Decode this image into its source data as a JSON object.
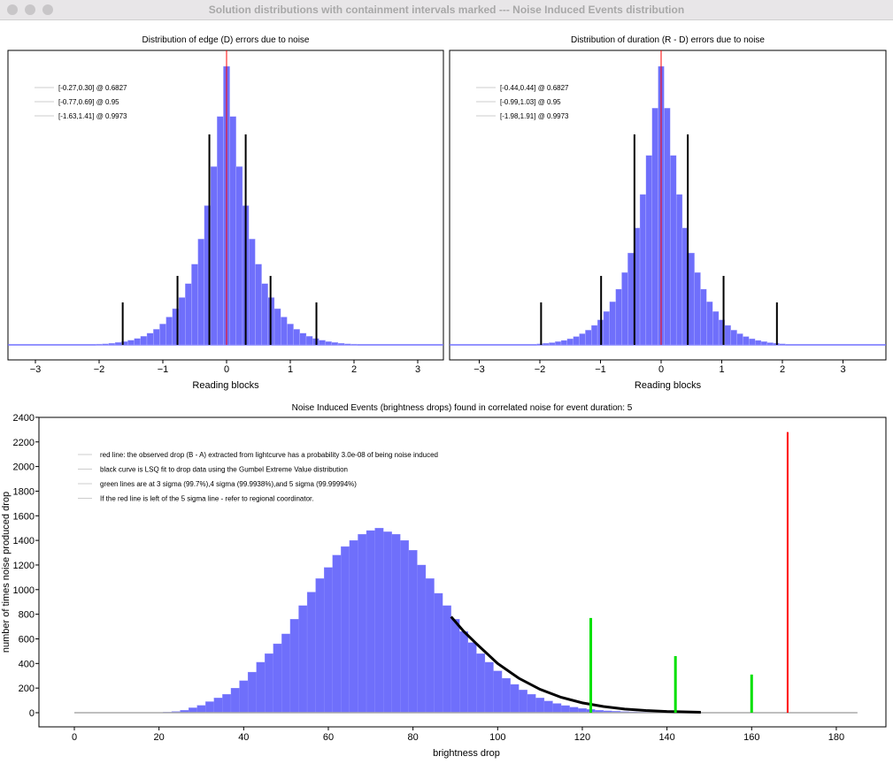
{
  "window": {
    "title": "Solution distributions with containment intervals marked --- Noise Induced Events distribution"
  },
  "chart_data": [
    {
      "type": "bar",
      "title": "Distribution of edge (D) errors due to noise",
      "xlabel": "Reading blocks",
      "ylabel": "",
      "xlim": [
        -3.4,
        3.4
      ],
      "xticks": [
        -3,
        -2,
        -1,
        0,
        1,
        2,
        3
      ],
      "bin_centers": [
        -2.0,
        -1.9,
        -1.8,
        -1.7,
        -1.6,
        -1.5,
        -1.4,
        -1.3,
        -1.2,
        -1.1,
        -1.0,
        -0.9,
        -0.8,
        -0.7,
        -0.6,
        -0.5,
        -0.4,
        -0.3,
        -0.2,
        -0.1,
        0,
        0.1,
        0.2,
        0.3,
        0.4,
        0.5,
        0.6,
        0.7,
        0.8,
        0.9,
        1.0,
        1.1,
        1.2,
        1.3,
        1.4,
        1.5,
        1.6,
        1.7,
        1.8,
        1.9,
        2.0
      ],
      "relative_counts": [
        0.003,
        0.004,
        0.006,
        0.009,
        0.012,
        0.017,
        0.023,
        0.031,
        0.042,
        0.056,
        0.075,
        0.1,
        0.13,
        0.17,
        0.22,
        0.29,
        0.38,
        0.5,
        0.64,
        0.82,
        1.0,
        0.82,
        0.64,
        0.5,
        0.38,
        0.29,
        0.22,
        0.17,
        0.13,
        0.1,
        0.075,
        0.056,
        0.042,
        0.031,
        0.023,
        0.017,
        0.012,
        0.009,
        0.006,
        0.004,
        0.003
      ],
      "red_line_x": 0,
      "intervals": [
        {
          "lo": -0.27,
          "hi": 0.3,
          "label": "[-0.27,0.30] @ 0.6827"
        },
        {
          "lo": -0.77,
          "hi": 0.69,
          "label": "[-0.77,0.69] @ 0.95"
        },
        {
          "lo": -1.63,
          "hi": 1.41,
          "label": "[-1.63,1.41] @ 0.9973"
        }
      ],
      "legend_position": "top-left",
      "bar_color": "#6f6ffb",
      "line_color": "#ff0000"
    },
    {
      "type": "bar",
      "title": "Distribution of duration (R - D) errors due to noise",
      "xlabel": "Reading blocks",
      "ylabel": "",
      "xlim": [
        -3.4,
        3.8
      ],
      "xticks": [
        -3,
        -2,
        -1,
        0,
        1,
        2,
        3
      ],
      "bin_centers": [
        -2.0,
        -1.9,
        -1.8,
        -1.7,
        -1.6,
        -1.5,
        -1.4,
        -1.3,
        -1.2,
        -1.1,
        -1.0,
        -0.9,
        -0.8,
        -0.7,
        -0.6,
        -0.5,
        -0.4,
        -0.3,
        -0.2,
        -0.1,
        0,
        0.1,
        0.2,
        0.3,
        0.4,
        0.5,
        0.6,
        0.7,
        0.8,
        0.9,
        1.0,
        1.1,
        1.2,
        1.3,
        1.4,
        1.5,
        1.6,
        1.7,
        1.8,
        1.9,
        2.0
      ],
      "relative_counts": [
        0.004,
        0.006,
        0.008,
        0.012,
        0.016,
        0.022,
        0.03,
        0.04,
        0.053,
        0.07,
        0.09,
        0.12,
        0.155,
        0.2,
        0.26,
        0.33,
        0.42,
        0.54,
        0.68,
        0.85,
        1.0,
        0.85,
        0.68,
        0.54,
        0.42,
        0.33,
        0.26,
        0.2,
        0.155,
        0.12,
        0.09,
        0.07,
        0.053,
        0.04,
        0.03,
        0.022,
        0.016,
        0.012,
        0.008,
        0.006,
        0.004
      ],
      "red_line_x": 0,
      "intervals": [
        {
          "lo": -0.44,
          "hi": 0.44,
          "label": "[-0.44,0.44] @ 0.6827"
        },
        {
          "lo": -0.99,
          "hi": 1.03,
          "label": "[-0.99,1.03] @ 0.95"
        },
        {
          "lo": -1.98,
          "hi": 1.91,
          "label": "[-1.98,1.91] @ 0.9973"
        }
      ],
      "legend_position": "top-left",
      "bar_color": "#6f6ffb",
      "line_color": "#ff0000"
    },
    {
      "type": "bar",
      "title": "Noise Induced Events (brightness drops) found in correlated noise for event duration: 5",
      "xlabel": "brightness drop",
      "ylabel": "number of times noise produced drop",
      "xlim": [
        -8,
        192
      ],
      "ylim": [
        -100,
        2400
      ],
      "xticks": [
        0,
        20,
        40,
        60,
        80,
        100,
        120,
        140,
        160,
        180
      ],
      "yticks": [
        0,
        200,
        400,
        600,
        800,
        1000,
        1200,
        1400,
        1600,
        1800,
        2000,
        2200,
        2400
      ],
      "bin_width": 2,
      "bin_centers": [
        20,
        22,
        24,
        26,
        28,
        30,
        32,
        34,
        36,
        38,
        40,
        42,
        44,
        46,
        48,
        50,
        52,
        54,
        56,
        58,
        60,
        62,
        64,
        66,
        68,
        70,
        72,
        74,
        76,
        78,
        80,
        82,
        84,
        86,
        88,
        90,
        92,
        94,
        96,
        98,
        100,
        102,
        104,
        106,
        108,
        110,
        112,
        114,
        116,
        118,
        120,
        122,
        124,
        126,
        128,
        130,
        132,
        134,
        136,
        138,
        140,
        142,
        144,
        146
      ],
      "counts": [
        0,
        5,
        10,
        20,
        40,
        60,
        90,
        120,
        150,
        200,
        260,
        330,
        410,
        480,
        560,
        640,
        760,
        870,
        980,
        1090,
        1180,
        1280,
        1350,
        1400,
        1450,
        1480,
        1500,
        1470,
        1450,
        1400,
        1320,
        1200,
        1090,
        970,
        870,
        760,
        660,
        570,
        480,
        410,
        340,
        280,
        230,
        185,
        150,
        120,
        95,
        75,
        58,
        45,
        35,
        27,
        20,
        15,
        12,
        9,
        7,
        5,
        4,
        3,
        2,
        2,
        1,
        1
      ],
      "baseline_range": [
        0,
        185
      ],
      "gumbel_fit": [
        [
          89,
          780
        ],
        [
          92,
          660
        ],
        [
          95,
          560
        ],
        [
          100,
          400
        ],
        [
          105,
          280
        ],
        [
          110,
          190
        ],
        [
          115,
          125
        ],
        [
          120,
          80
        ],
        [
          125,
          50
        ],
        [
          130,
          30
        ],
        [
          135,
          18
        ],
        [
          140,
          10
        ],
        [
          148,
          4
        ]
      ],
      "green_lines": [
        {
          "x": 122,
          "height": 770
        },
        {
          "x": 142,
          "height": 460
        },
        {
          "x": 160,
          "height": 310
        }
      ],
      "red_line": {
        "x": 168.5,
        "height": 2280
      },
      "legend": [
        "red line: the observed drop (B - A) extracted from lightcurve has a probability 3.0e-08 of being noise induced",
        "black curve is LSQ fit to drop data using the Gumbel Extreme Value distribution",
        "green lines are at 3 sigma (99.7%),4 sigma (99.9938%),and 5 sigma (99.99994%)",
        "If the red line is left of the 5 sigma line - refer to regional coordinator."
      ],
      "legend_position": "top-left",
      "bar_color": "#6f6ffb",
      "green": "#00e000",
      "red": "#ff0000"
    }
  ]
}
